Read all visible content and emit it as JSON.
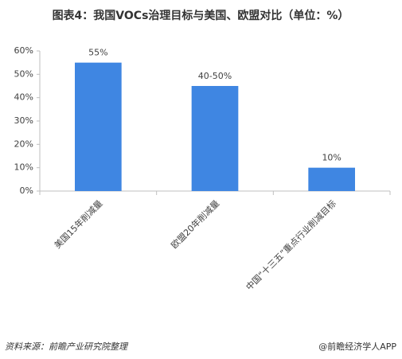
{
  "chart_data": {
    "type": "bar",
    "title": "图表4：我国VOCs治理目标与美国、欧盟对比（单位：%）",
    "categories": [
      "美国15年削减量",
      "欧盟20年削减量",
      "中国“十三五”重点行业削减目标"
    ],
    "values": [
      55,
      45,
      10
    ],
    "value_labels": [
      "55%",
      "40-50%",
      "10%"
    ],
    "color": "#3f86e2",
    "ylim": [
      0,
      60
    ],
    "yticks": [
      {
        "value": 0,
        "label": "0%"
      },
      {
        "value": 10,
        "label": "10%"
      },
      {
        "value": 20,
        "label": "20%"
      },
      {
        "value": 30,
        "label": "30%"
      },
      {
        "value": 40,
        "label": "40%"
      },
      {
        "value": 50,
        "label": "50%"
      },
      {
        "value": 60,
        "label": "60%"
      }
    ],
    "grid": false,
    "source": "资料来源：前瞻产业研究院整理",
    "credit": "@前瞻经济学人APP"
  }
}
